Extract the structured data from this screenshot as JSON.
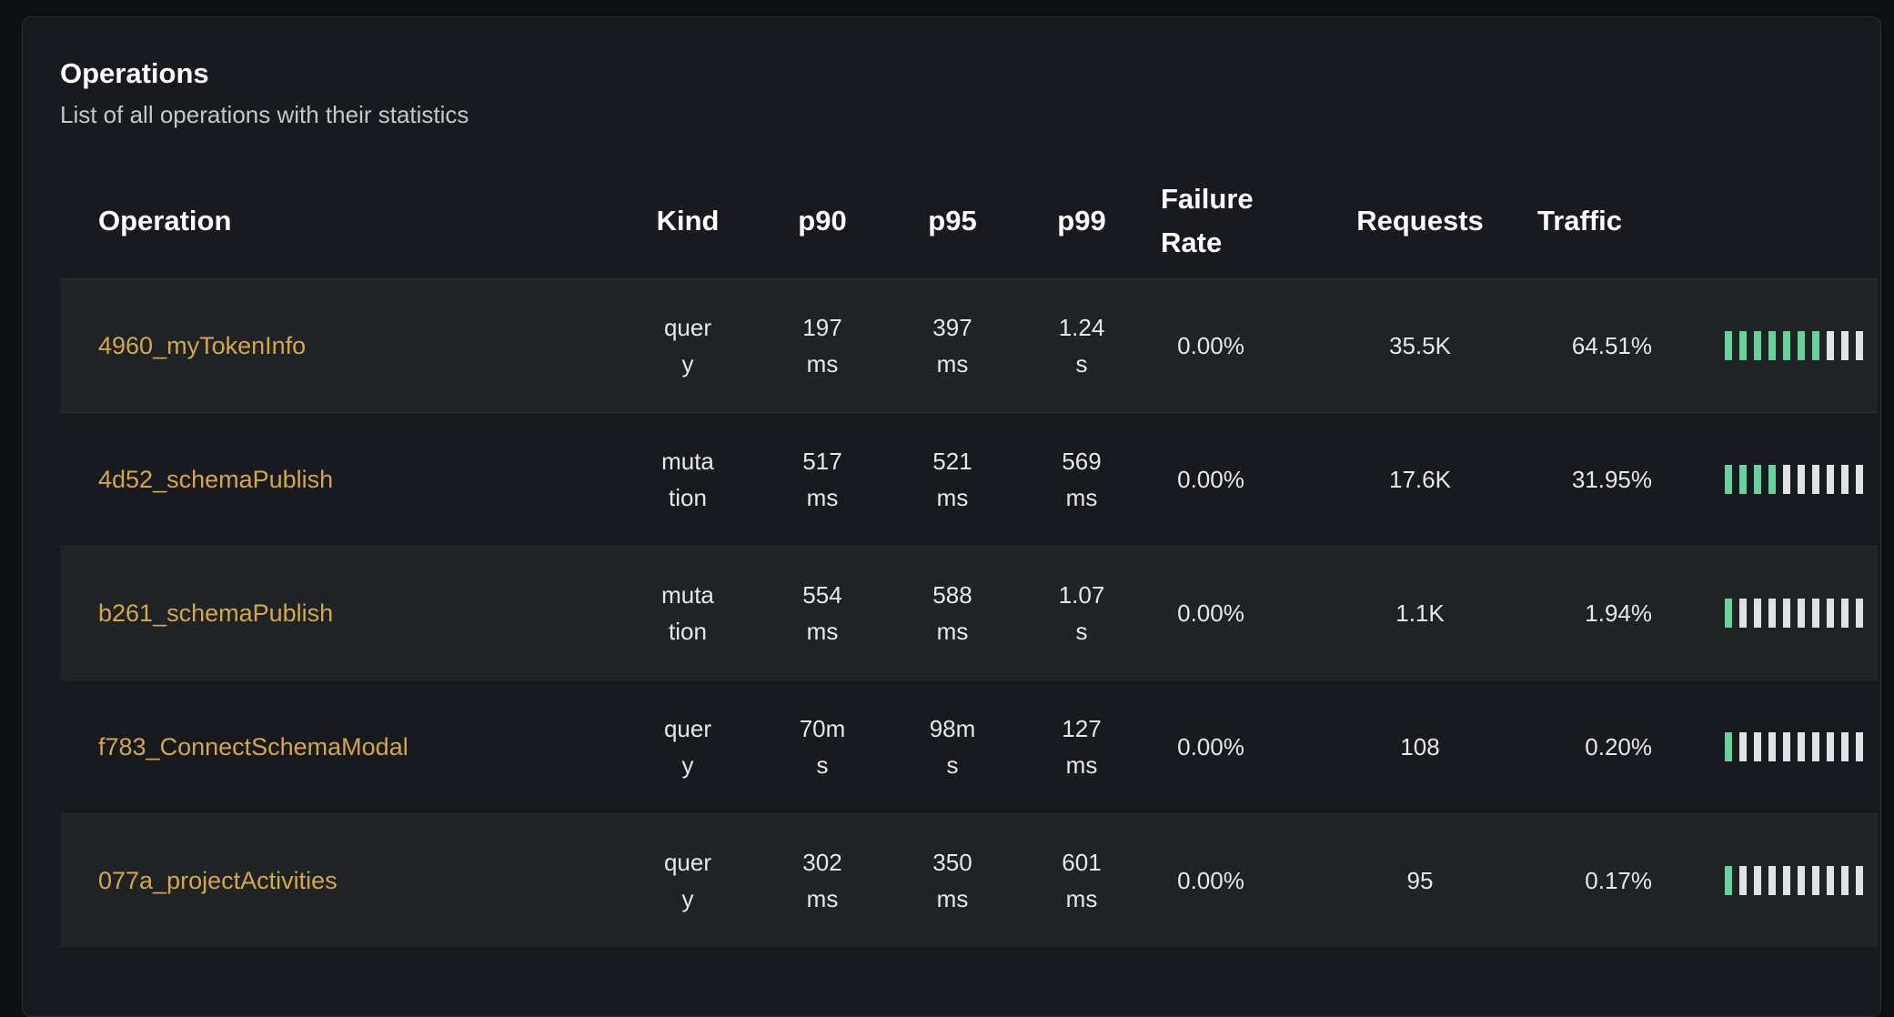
{
  "panel": {
    "title": "Operations",
    "subtitle": "List of all operations with their statistics"
  },
  "columns": {
    "operation": "Operation",
    "kind": "Kind",
    "p90": "p90",
    "p95": "p95",
    "p99": "p99",
    "failure_rate": "Failure Rate",
    "requests": "Requests",
    "traffic": "Traffic"
  },
  "colors": {
    "accent_name": "#d4a64a",
    "bar_filled": "#68d19a",
    "bar_empty": "#e0e1e3"
  },
  "rows": [
    {
      "name": "4960_myTokenInfo",
      "kind": "query",
      "p90": "197 ms",
      "p95": "397 ms",
      "p99": "1.24 s",
      "failure_rate": "0.00%",
      "requests": "35.5K",
      "traffic": "64.51%",
      "traffic_bars_filled": 7
    },
    {
      "name": "4d52_schemaPublish",
      "kind": "mutation",
      "p90": "517 ms",
      "p95": "521 ms",
      "p99": "569 ms",
      "failure_rate": "0.00%",
      "requests": "17.6K",
      "traffic": "31.95%",
      "traffic_bars_filled": 4
    },
    {
      "name": "b261_schemaPublish",
      "kind": "mutation",
      "p90": "554 ms",
      "p95": "588 ms",
      "p99": "1.07 s",
      "failure_rate": "0.00%",
      "requests": "1.1K",
      "traffic": "1.94%",
      "traffic_bars_filled": 1
    },
    {
      "name": "f783_ConnectSchemaModal",
      "kind": "query",
      "p90": "70ms",
      "p95": "98ms",
      "p99": "127 ms",
      "failure_rate": "0.00%",
      "requests": "108",
      "traffic": "0.20%",
      "traffic_bars_filled": 1
    },
    {
      "name": "077a_projectActivities",
      "kind": "query",
      "p90": "302 ms",
      "p95": "350 ms",
      "p99": "601 ms",
      "failure_rate": "0.00%",
      "requests": "95",
      "traffic": "0.17%",
      "traffic_bars_filled": 1
    }
  ]
}
